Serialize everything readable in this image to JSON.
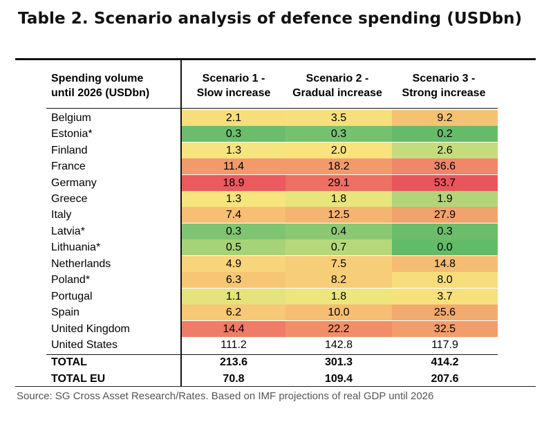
{
  "title": "Table 2. Scenario analysis of defence spending (USDbn)",
  "header": {
    "first": "Spending volume\nuntil 2026 (USDbn)",
    "scenarios": [
      "Scenario 1 -\nSlow increase",
      "Scenario 2 -\nGradual increase",
      "Scenario 3 -\nStrong increase"
    ]
  },
  "rows": [
    {
      "country": "Belgium",
      "values": [
        "2.1",
        "3.5",
        "9.2"
      ],
      "colors": [
        "#f8de7b",
        "#f7df7b",
        "#f5c274"
      ]
    },
    {
      "country": "Estonia*",
      "values": [
        "0.3",
        "0.3",
        "0.2"
      ],
      "colors": [
        "#6bbd6d",
        "#76c170",
        "#66bb6a"
      ]
    },
    {
      "country": "Finland",
      "values": [
        "1.3",
        "2.0",
        "2.6"
      ],
      "colors": [
        "#f5e57e",
        "#f8e37c",
        "#c5dc7d"
      ]
    },
    {
      "country": "France",
      "values": [
        "11.4",
        "18.2",
        "36.6"
      ],
      "colors": [
        "#f29a6b",
        "#f29a6c",
        "#f0866a"
      ]
    },
    {
      "country": "Germany",
      "values": [
        "18.9",
        "29.1",
        "53.7"
      ],
      "colors": [
        "#ea5a5f",
        "#ee6f63",
        "#e9555d"
      ]
    },
    {
      "country": "Greece",
      "values": [
        "1.3",
        "1.8",
        "1.9"
      ],
      "colors": [
        "#f6e47d",
        "#e8e47e",
        "#b3d47a"
      ]
    },
    {
      "country": "Italy",
      "values": [
        "7.4",
        "12.5",
        "27.9"
      ],
      "colors": [
        "#f6bf73",
        "#f4b571",
        "#f2a26c"
      ]
    },
    {
      "country": "Latvia*",
      "values": [
        "0.3",
        "0.4",
        "0.3"
      ],
      "colors": [
        "#7fc472",
        "#8cc874",
        "#6cbd6b"
      ]
    },
    {
      "country": "Lithuania*",
      "values": [
        "0.5",
        "0.7",
        "0.0"
      ],
      "colors": [
        "#a6d278",
        "#b7d87a",
        "#63ba69"
      ]
    },
    {
      "country": "Netherlands",
      "values": [
        "4.9",
        "7.5",
        "14.8"
      ],
      "colors": [
        "#f8d47a",
        "#f7ce78",
        "#f5bd73"
      ]
    },
    {
      "country": "Poland*",
      "values": [
        "6.3",
        "8.2",
        "8.0"
      ],
      "colors": [
        "#f7c675",
        "#f8cd77",
        "#f8dd7c"
      ]
    },
    {
      "country": "Portugal",
      "values": [
        "1.1",
        "1.8",
        "3.7"
      ],
      "colors": [
        "#e5e37e",
        "#ede57e",
        "#f7e17c"
      ]
    },
    {
      "country": "Spain",
      "values": [
        "6.2",
        "10.0",
        "25.6"
      ],
      "colors": [
        "#f7c876",
        "#f6bd73",
        "#f3aa6e"
      ]
    },
    {
      "country": "United Kingdom",
      "values": [
        "14.4",
        "22.2",
        "32.5"
      ],
      "colors": [
        "#ee7c66",
        "#f08e69",
        "#f19d6c"
      ]
    },
    {
      "country": "United States",
      "values": [
        "111.2",
        "142.8",
        "117.9"
      ],
      "colors": [
        "#ffffff",
        "#ffffff",
        "#ffffff"
      ]
    },
    {
      "country": "TOTAL",
      "values": [
        "213.6",
        "301.3",
        "414.2"
      ],
      "colors": [
        "#ffffff",
        "#ffffff",
        "#ffffff"
      ],
      "total": true
    },
    {
      "country": "TOTAL EU",
      "values": [
        "70.8",
        "109.4",
        "207.6"
      ],
      "colors": [
        "#ffffff",
        "#ffffff",
        "#ffffff"
      ],
      "total": true
    }
  ],
  "source": "Source: SG Cross Asset Research/Rates. Based on IMF projections of real GDP until 2026"
}
